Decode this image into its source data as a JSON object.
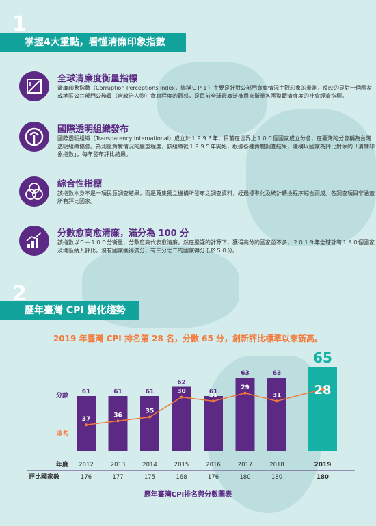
{
  "section1": {
    "number": "1",
    "title": "掌握4大重點，看懂清廉印象指數",
    "items": [
      {
        "title": "全球清廉度衡量指標",
        "body": "清廉印象指數（Corruption Perceptions Index，簡稱ＣＰＩ）主要是針對公部門貪腐情況主觀印象的量測，反映的是對一個國家或地區公共部門公務員（含政治人物）貪腐程度的觀感，是目前全球最廣泛被用來衡量各國整體清廉度的社會經濟指標。",
        "icon": "ruler-triangle-icon"
      },
      {
        "title": "國際透明組織發布",
        "body": "國際透明組織（Transparency International）成立於１９９３年，目前在世界上１００個國家成立分會，在臺灣的分會稱為台灣透明組織協會。為測量貪腐情況的嚴重程度，該組織從１９９５年開始，根據各種貪腐調查結果，建構以國家為評比對象的「清廉印象指數」，每年發布評比結果。",
        "icon": "transparency-logo-icon"
      },
      {
        "title": "綜合性指標",
        "body": "該指數本身不是一項民意調查結果，而是蒐集獨立機構所發布之調查資料，經過標準化及統計轉換程序綜合而成。各調查項目非涵蓋所有評比國家。",
        "icon": "venn-circles-icon"
      },
      {
        "title": "分數愈高愈清廉，滿分為 100 分",
        "body": "該指數以０－１００分衡量，分數愈高代表愈清廉，然在嚴謹的計算下，獲得高分的國家並不多，２０１９年全球計有１８０個國家及地區納入評比，沒有國家獲得滿分，有三分之二的國家得分低於５０分。",
        "icon": "bar-chart-trend-icon"
      }
    ]
  },
  "section2": {
    "number": "2",
    "title": "歷年臺灣 CPI 變化趨勢",
    "highlight": "2019 年臺灣 CPI 排名第 28 名，分數 65 分，創新評比標準以來新高。",
    "caption": "歷年臺灣CPI排名與分數圖表"
  },
  "chart_data": {
    "type": "bar",
    "title": "歷年臺灣CPI排名與分數圖表",
    "categories": [
      "2012",
      "2013",
      "2014",
      "2015",
      "2016",
      "2017",
      "2018",
      "2019"
    ],
    "series": [
      {
        "name": "分數",
        "type": "bar",
        "values": [
          61,
          61,
          61,
          62,
          61,
          63,
          63,
          65
        ]
      },
      {
        "name": "排名",
        "type": "line",
        "values": [
          37,
          36,
          35,
          30,
          31,
          29,
          31,
          28
        ]
      }
    ],
    "row_labels": {
      "year": "年度",
      "countries": "評比國家數"
    },
    "countries": [
      176,
      177,
      175,
      168,
      176,
      180,
      180,
      180
    ],
    "colors": {
      "bar": "#5c2a84",
      "highlight_bar": "#16b2a6",
      "rank_line": "#f47a3a",
      "score_label": "#5c2a84",
      "rank_label": "#f47a3a"
    }
  }
}
